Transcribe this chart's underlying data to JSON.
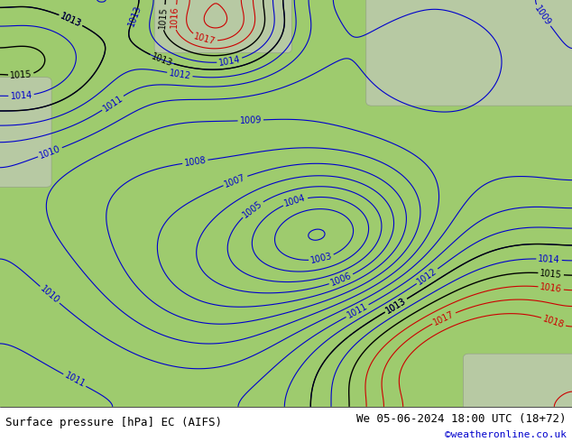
{
  "title_left": "Surface pressure [hPa] EC (AIFS)",
  "title_right": "We 05-06-2024 18:00 UTC (18+72)",
  "credit": "©weatheronline.co.uk",
  "bg_color": "#9ecb6e",
  "land_color": "#b8d98b",
  "sea_color": "#9ecb6e",
  "border_color": "#888888",
  "contour_blue": "#0000cc",
  "contour_black": "#000000",
  "contour_red": "#cc0000",
  "label_fontsize": 7,
  "title_fontsize": 9,
  "credit_fontsize": 8,
  "figsize": [
    6.34,
    4.9
  ],
  "dpi": 100
}
